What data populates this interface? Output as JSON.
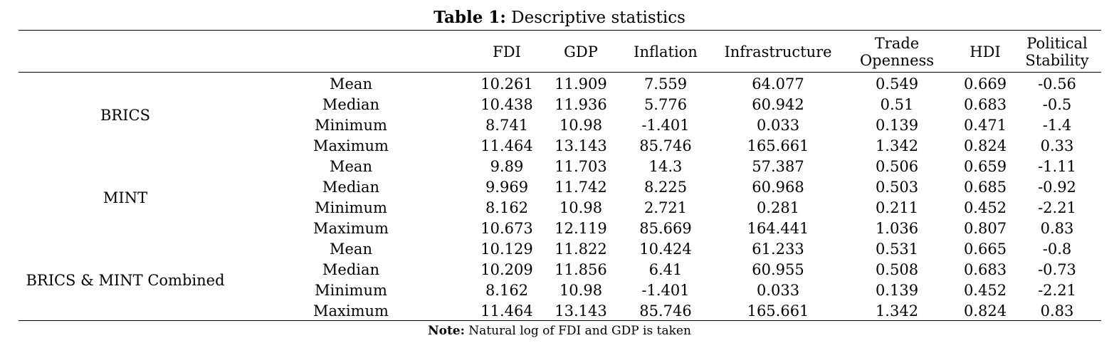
{
  "table": {
    "caption_lead": "Table 1:",
    "caption_text": " Descriptive statistics",
    "columns": [
      "FDI",
      "GDP",
      "Inflation",
      "Infrastructure",
      "Trade Openness",
      "HDI",
      "Political Stability"
    ],
    "groups": [
      {
        "name": "BRICS",
        "rows": [
          {
            "stat": "Mean",
            "values": [
              "10.261",
              "11.909",
              "7.559",
              "64.077",
              "0.549",
              "0.669",
              "-0.56"
            ]
          },
          {
            "stat": "Median",
            "values": [
              "10.438",
              "11.936",
              "5.776",
              "60.942",
              "0.51",
              "0.683",
              "-0.5"
            ]
          },
          {
            "stat": "Minimum",
            "values": [
              "8.741",
              "10.98",
              "-1.401",
              "0.033",
              "0.139",
              "0.471",
              "-1.4"
            ]
          },
          {
            "stat": "Maximum",
            "values": [
              "11.464",
              "13.143",
              "85.746",
              "165.661",
              "1.342",
              "0.824",
              "0.33"
            ]
          }
        ]
      },
      {
        "name": "MINT",
        "rows": [
          {
            "stat": "Mean",
            "values": [
              "9.89",
              "11.703",
              "14.3",
              "57.387",
              "0.506",
              "0.659",
              "-1.11"
            ]
          },
          {
            "stat": "Median",
            "values": [
              "9.969",
              "11.742",
              "8.225",
              "60.968",
              "0.503",
              "0.685",
              "-0.92"
            ]
          },
          {
            "stat": "Minimum",
            "values": [
              "8.162",
              "10.98",
              "2.721",
              "0.281",
              "0.211",
              "0.452",
              "-2.21"
            ]
          },
          {
            "stat": "Maximum",
            "values": [
              "10.673",
              "12.119",
              "85.669",
              "164.441",
              "1.036",
              "0.807",
              "0.83"
            ]
          }
        ]
      },
      {
        "name": "BRICS & MINT Combined",
        "rows": [
          {
            "stat": "Mean",
            "values": [
              "10.129",
              "11.822",
              "10.424",
              "61.233",
              "0.531",
              "0.665",
              "-0.8"
            ]
          },
          {
            "stat": "Median",
            "values": [
              "10.209",
              "11.856",
              "6.41",
              "60.955",
              "0.508",
              "0.683",
              "-0.73"
            ]
          },
          {
            "stat": "Minimum",
            "values": [
              "8.162",
              "10.98",
              "-1.401",
              "0.033",
              "0.139",
              "0.452",
              "-2.21"
            ]
          },
          {
            "stat": "Maximum",
            "values": [
              "11.464",
              "13.143",
              "85.746",
              "165.661",
              "1.342",
              "0.824",
              "0.83"
            ]
          }
        ]
      }
    ],
    "note_lead": "Note:",
    "note_text": " Natural log of FDI and GDP is taken"
  }
}
